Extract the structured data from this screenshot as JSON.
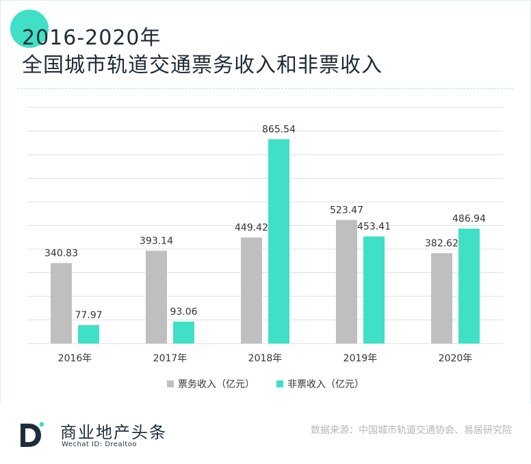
{
  "title": {
    "line1": "2016-2020年",
    "line2": "全国城市轨道交通票务收入和非票收入"
  },
  "footer": {
    "brand_name": "商业地产头条",
    "brand_sub": "Wechat ID: Drealtoo",
    "source": "数据来源：中国城市轨道交通协会、易居研究院"
  },
  "colors": {
    "accent": "#3fe0c5",
    "ticket": "#bfbfbf",
    "nonticket": "#3fe0c5"
  },
  "chart_data": {
    "type": "bar",
    "categories": [
      "2016年",
      "2017年",
      "2018年",
      "2019年",
      "2020年"
    ],
    "series": [
      {
        "name": "票务收入（亿元）",
        "values": [
          340.83,
          393.14,
          449.42,
          523.47,
          382.62
        ],
        "color": "#bfbfbf"
      },
      {
        "name": "非票收入（亿元）",
        "values": [
          77.97,
          93.06,
          865.54,
          453.41,
          486.94
        ],
        "color": "#3fe0c5"
      }
    ],
    "ylim": [
      0,
      1000
    ],
    "grid": true,
    "legend": "bottom"
  }
}
